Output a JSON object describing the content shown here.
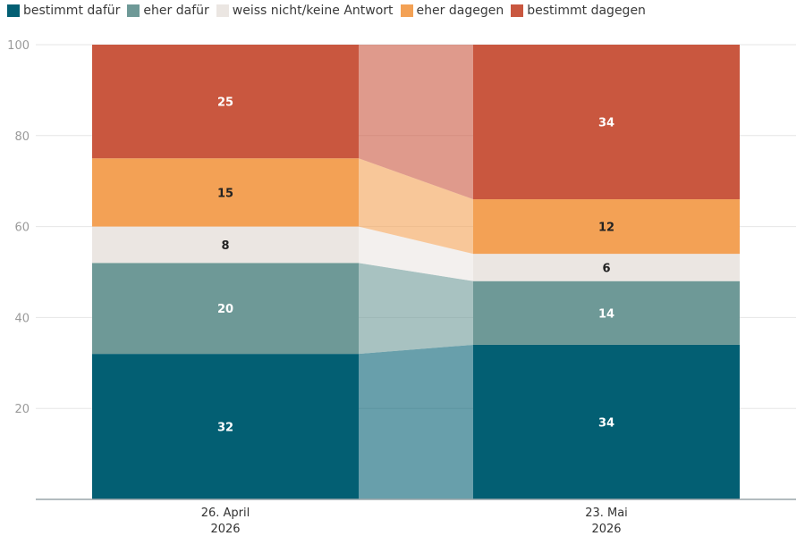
{
  "chart_data": {
    "type": "bar",
    "stacked": true,
    "categories": [
      [
        "26. April",
        "2026"
      ],
      [
        "23. Mai",
        "2026"
      ]
    ],
    "ylim": [
      0,
      100
    ],
    "yticks": [
      20,
      40,
      60,
      80,
      100
    ],
    "grid": true,
    "legend_position": "top-left",
    "series": [
      {
        "name": "bestimmt dafür",
        "color": "#035f73",
        "values": [
          32,
          34
        ]
      },
      {
        "name": "eher dafür",
        "color": "#6e9997",
        "values": [
          20,
          14
        ]
      },
      {
        "name": "weiss nicht/keine Antwort",
        "color": "#ebe6e2",
        "values": [
          8,
          6
        ]
      },
      {
        "name": "eher dagegen",
        "color": "#f3a155",
        "values": [
          15,
          12
        ]
      },
      {
        "name": "bestimmt dagegen",
        "color": "#c9573f",
        "values": [
          25,
          34
        ]
      }
    ]
  }
}
